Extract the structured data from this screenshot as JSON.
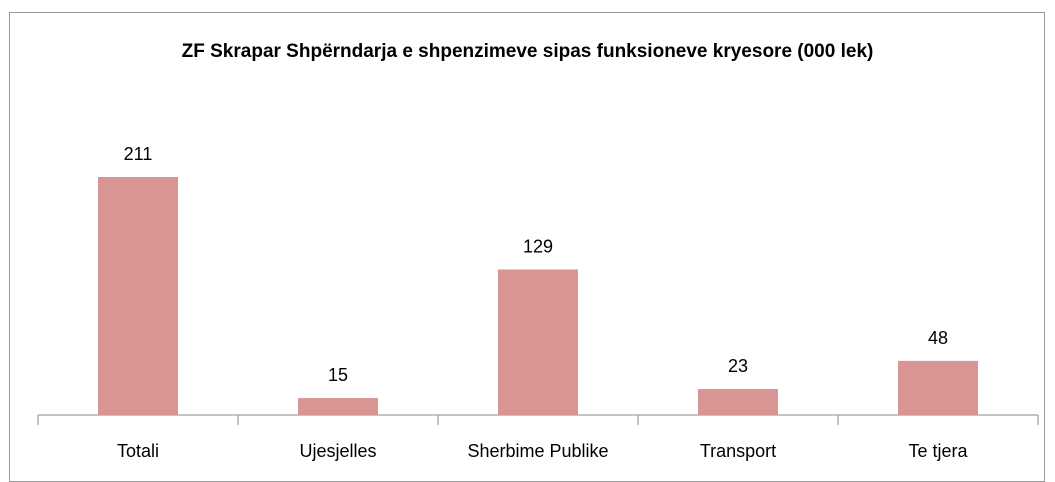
{
  "chart_data": {
    "type": "bar",
    "title": "ZF Skrapar Shpërndarja e shpenzimeve sipas funksioneve kryesore (000 lek)",
    "categories": [
      "Totali",
      "Ujesjelles",
      "Sherbime Publike",
      "Transport",
      "Te tjera"
    ],
    "values": [
      211,
      15,
      129,
      23,
      48
    ],
    "color": "#d99594"
  }
}
